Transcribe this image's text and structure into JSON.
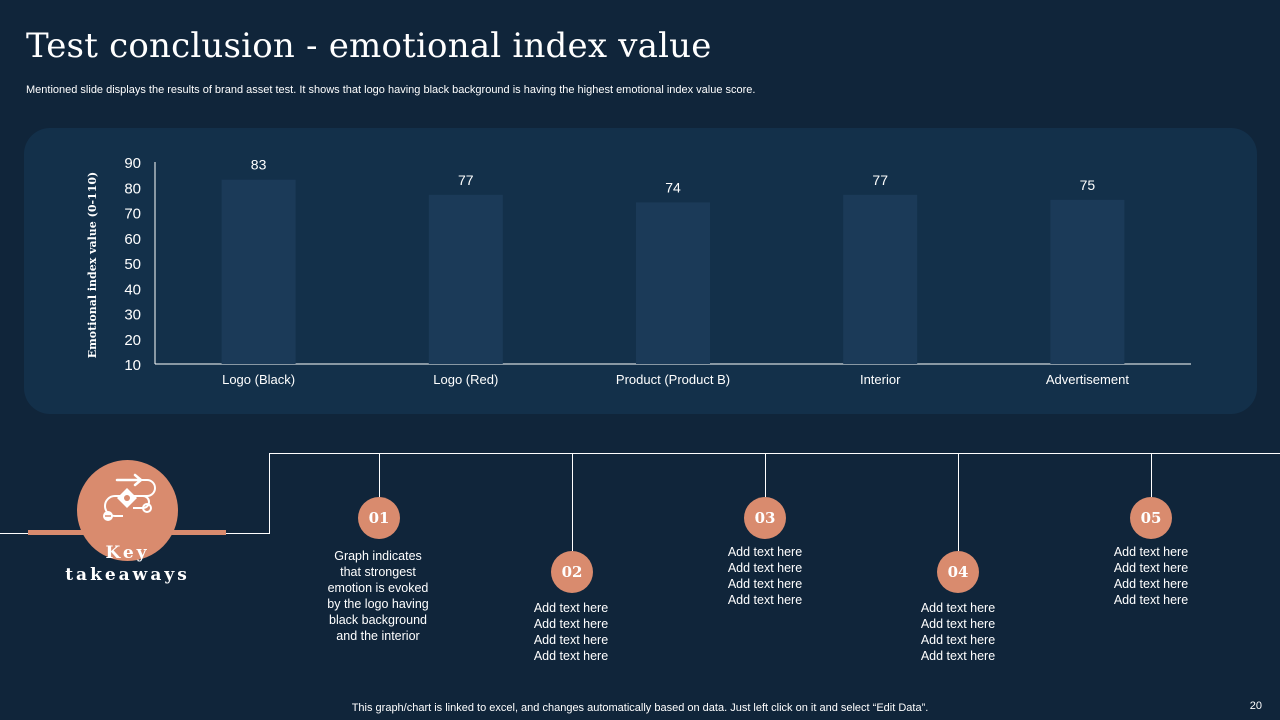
{
  "title": "Test conclusion - emotional index value",
  "subtitle": "Mentioned slide displays the results of brand asset test. It shows that logo having black background is having the highest emotional index value score.",
  "chart_data": {
    "type": "bar",
    "title": "",
    "xlabel": "",
    "ylabel": "Emotional index value (0-110)",
    "categories": [
      "Logo (Black)",
      "Logo (Red)",
      "Product (Product B)",
      "Interior",
      "Advertisement"
    ],
    "values": [
      83,
      77,
      74,
      77,
      75
    ],
    "ylim": [
      10,
      90
    ],
    "yticks": [
      10,
      20,
      30,
      40,
      50,
      60,
      70,
      80,
      90
    ],
    "bar_color": "#1b3a58",
    "grid": false,
    "data_labels": true
  },
  "takeaways": {
    "heading": "Key takeaways",
    "accent_color": "#d98b6e",
    "icon": "workflow-icon",
    "steps": [
      {
        "num": "01",
        "lines": [
          "Graph indicates",
          "that strongest",
          "emotion is evoked",
          "by the logo having",
          "black background",
          "and the interior"
        ]
      },
      {
        "num": "02",
        "lines": [
          "Add text here",
          "Add text here",
          "Add text here",
          "Add text here"
        ]
      },
      {
        "num": "03",
        "lines": [
          "Add text here",
          "Add text here",
          "Add text here",
          "Add text here"
        ]
      },
      {
        "num": "04",
        "lines": [
          "Add text here",
          "Add text here",
          "Add text here",
          "Add text here"
        ]
      },
      {
        "num": "05",
        "lines": [
          "Add text here",
          "Add text here",
          "Add text here",
          "Add text here"
        ]
      }
    ]
  },
  "footer": "This graph/chart is linked to excel, and changes automatically based on data. Just left click on it and select “Edit Data”.",
  "page_number": "20"
}
